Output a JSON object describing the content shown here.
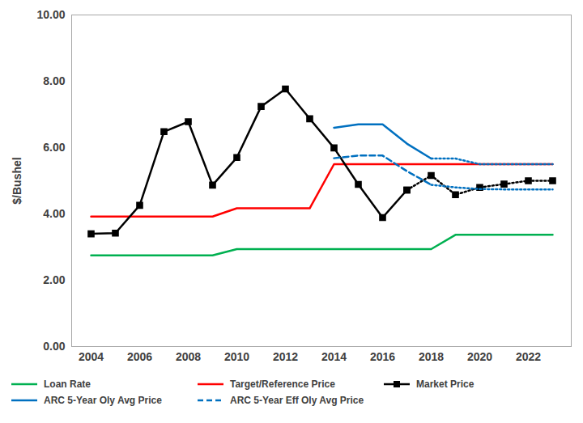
{
  "chart_data": {
    "type": "line",
    "y_label": "$/Bushel",
    "categories": [
      "2004",
      null,
      "2006",
      null,
      "2008",
      null,
      "2010",
      null,
      "2012",
      null,
      "2014",
      null,
      "2016",
      null,
      "2018",
      null,
      "2020",
      null,
      "2022",
      null
    ],
    "ylim": [
      0,
      10
    ],
    "yticks": [
      {
        "value": 0,
        "label": "0.00"
      },
      {
        "value": 2,
        "label": "2.00"
      },
      {
        "value": 4,
        "label": "4.00"
      },
      {
        "value": 6,
        "label": "6.00"
      },
      {
        "value": 8,
        "label": "8.00"
      },
      {
        "value": 10,
        "label": "10.00"
      }
    ],
    "grid": false,
    "legend": "bottom",
    "series": [
      {
        "name": "Loan Rate",
        "color": "#00b050",
        "line_style": "solid",
        "values": [
          2.75,
          2.75,
          2.75,
          2.75,
          2.75,
          2.75,
          2.94,
          2.94,
          2.94,
          2.94,
          2.94,
          2.94,
          2.94,
          2.94,
          2.94,
          3.37,
          3.37,
          3.37,
          3.37,
          3.37
        ]
      },
      {
        "name": "Target/Reference Price",
        "color": "#ff0000",
        "line_style": "solid",
        "values": [
          3.92,
          3.92,
          3.92,
          3.92,
          3.92,
          3.92,
          4.17,
          4.17,
          4.17,
          4.17,
          5.5,
          5.5,
          5.5,
          5.5,
          5.5,
          5.5,
          5.5,
          5.5,
          5.5,
          5.5
        ]
      },
      {
        "name": "Market Price",
        "color": "#000000",
        "line_style": "solid",
        "marker": "square",
        "values": [
          3.4,
          3.42,
          4.26,
          6.48,
          6.78,
          4.87,
          5.7,
          7.24,
          7.77,
          6.87,
          5.99,
          4.89,
          3.89,
          4.72,
          null,
          null,
          null,
          null,
          null,
          null
        ]
      },
      {
        "name": "Market Price",
        "color": "#000000",
        "line_style": "dotted",
        "marker": "square",
        "values": [
          null,
          null,
          null,
          null,
          null,
          null,
          null,
          null,
          null,
          null,
          null,
          null,
          null,
          4.72,
          5.16,
          4.58,
          4.8,
          4.9,
          5.0,
          5.0
        ]
      },
      {
        "name": "ARC 5-Year Oly Avg Price",
        "color": "#0070c0",
        "line_style": "solid",
        "values": [
          null,
          null,
          null,
          null,
          null,
          null,
          null,
          null,
          null,
          null,
          6.6,
          6.7,
          6.7,
          6.12,
          5.67,
          null,
          null,
          null,
          null,
          null
        ]
      },
      {
        "name": "ARC 5-Year Oly Avg Price",
        "color": "#0070c0",
        "line_style": "dotted",
        "values": [
          null,
          null,
          null,
          null,
          null,
          null,
          null,
          null,
          null,
          null,
          null,
          null,
          null,
          null,
          5.67,
          5.67,
          5.5,
          5.5,
          5.5,
          5.5
        ]
      },
      {
        "name": "ARC 5-Year Eff Oly Avg Price",
        "color": "#0070c0",
        "line_style": "dashed",
        "values": [
          null,
          null,
          null,
          null,
          null,
          null,
          null,
          null,
          null,
          null,
          5.68,
          5.76,
          5.76,
          5.29,
          4.88,
          null,
          null,
          null,
          null,
          null
        ]
      },
      {
        "name": "ARC 5-Year Eff Oly Avg Price",
        "color": "#0070c0",
        "line_style": "dotted",
        "values": [
          null,
          null,
          null,
          null,
          null,
          null,
          null,
          null,
          null,
          null,
          null,
          null,
          null,
          null,
          4.88,
          4.8,
          4.75,
          4.74,
          4.74,
          4.74
        ]
      }
    ]
  }
}
